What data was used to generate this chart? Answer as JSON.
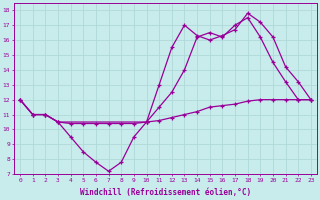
{
  "bg_color": "#c8ecec",
  "grid_color": "#b0d8d8",
  "line_color": "#990099",
  "xlabel": "Windchill (Refroidissement éolien,°C)",
  "xlim": [
    -0.5,
    23.5
  ],
  "ylim": [
    7,
    18.5
  ],
  "xticks": [
    0,
    1,
    2,
    3,
    4,
    5,
    6,
    7,
    8,
    9,
    10,
    11,
    12,
    13,
    14,
    15,
    16,
    17,
    18,
    19,
    20,
    21,
    22,
    23
  ],
  "yticks": [
    7,
    8,
    9,
    10,
    11,
    12,
    13,
    14,
    15,
    16,
    17,
    18
  ],
  "line1_x": [
    0,
    1,
    2,
    3,
    4,
    5,
    6,
    7,
    8,
    9,
    10,
    11,
    12,
    13,
    14,
    15,
    16,
    17,
    18,
    19,
    20,
    21,
    22,
    23
  ],
  "line1_y": [
    12,
    11,
    11,
    10.5,
    9.5,
    8.5,
    7.8,
    7.2,
    7.8,
    9.5,
    10.5,
    11.5,
    12.5,
    14.0,
    16.2,
    16.5,
    16.2,
    17.0,
    17.5,
    16.2,
    14.5,
    13.2,
    12.0,
    12.0
  ],
  "line2_x": [
    0,
    1,
    2,
    3,
    4,
    5,
    6,
    7,
    8,
    9,
    10,
    11,
    12,
    13,
    14,
    15,
    16,
    17,
    18,
    19,
    20,
    21,
    22,
    23
  ],
  "line2_y": [
    12,
    11,
    11,
    10.5,
    10.4,
    10.4,
    10.4,
    10.4,
    10.4,
    10.4,
    10.5,
    10.6,
    10.8,
    11.0,
    11.2,
    11.5,
    11.6,
    11.7,
    11.9,
    12.0,
    12.0,
    12.0,
    12.0,
    12.0
  ],
  "line3_x": [
    0,
    1,
    2,
    3,
    10,
    11,
    12,
    13,
    14,
    15,
    16,
    17,
    18,
    19,
    20,
    21,
    22,
    23
  ],
  "line3_y": [
    12,
    11,
    11,
    10.5,
    10.5,
    13.0,
    15.5,
    17.0,
    16.3,
    16.0,
    16.3,
    16.7,
    17.8,
    17.2,
    16.2,
    14.2,
    13.2,
    12.0
  ]
}
